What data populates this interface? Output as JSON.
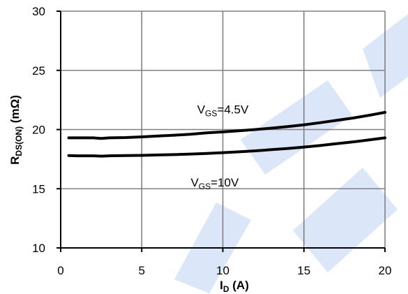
{
  "chart_data": {
    "type": "line",
    "xlabel": {
      "main": "I",
      "sub": "D",
      "rest": " (A)"
    },
    "ylabel": {
      "main": "R",
      "sub": "DS(ON)",
      "rest": " (mΩ)"
    },
    "xlim": [
      0,
      20
    ],
    "ylim": [
      10,
      30
    ],
    "xticks": [
      0,
      5,
      10,
      15,
      20
    ],
    "yticks": [
      10,
      15,
      20,
      25,
      30
    ],
    "grid": true,
    "watermark_color": "#dbe6f8",
    "line_color": "#000000",
    "series": [
      {
        "label": {
          "main": "V",
          "sub": "GS",
          "rest": "=4.5V"
        },
        "x": [
          0.5,
          1,
          2,
          2.5,
          3,
          4,
          5,
          6,
          7,
          8,
          9,
          10,
          11,
          12,
          13,
          14,
          15,
          16,
          17,
          18,
          19,
          20
        ],
        "y": [
          19.3,
          19.3,
          19.3,
          19.25,
          19.3,
          19.32,
          19.38,
          19.45,
          19.52,
          19.6,
          19.72,
          19.8,
          19.9,
          20.0,
          20.12,
          20.25,
          20.4,
          20.58,
          20.77,
          20.97,
          21.2,
          21.45
        ],
        "annotation_at": [
          10,
          21.35
        ]
      },
      {
        "label": {
          "main": "V",
          "sub": "GS",
          "rest": "=10V"
        },
        "x": [
          0.5,
          1,
          2,
          2.5,
          3,
          4,
          5,
          6,
          7,
          8,
          9,
          10,
          11,
          12,
          13,
          14,
          15,
          16,
          17,
          18,
          19,
          20
        ],
        "y": [
          17.8,
          17.78,
          17.78,
          17.75,
          17.78,
          17.8,
          17.82,
          17.85,
          17.88,
          17.93,
          17.98,
          18.05,
          18.12,
          18.2,
          18.3,
          18.4,
          18.52,
          18.65,
          18.8,
          18.95,
          19.12,
          19.3
        ],
        "annotation_at": [
          9.5,
          15.2
        ]
      }
    ]
  }
}
